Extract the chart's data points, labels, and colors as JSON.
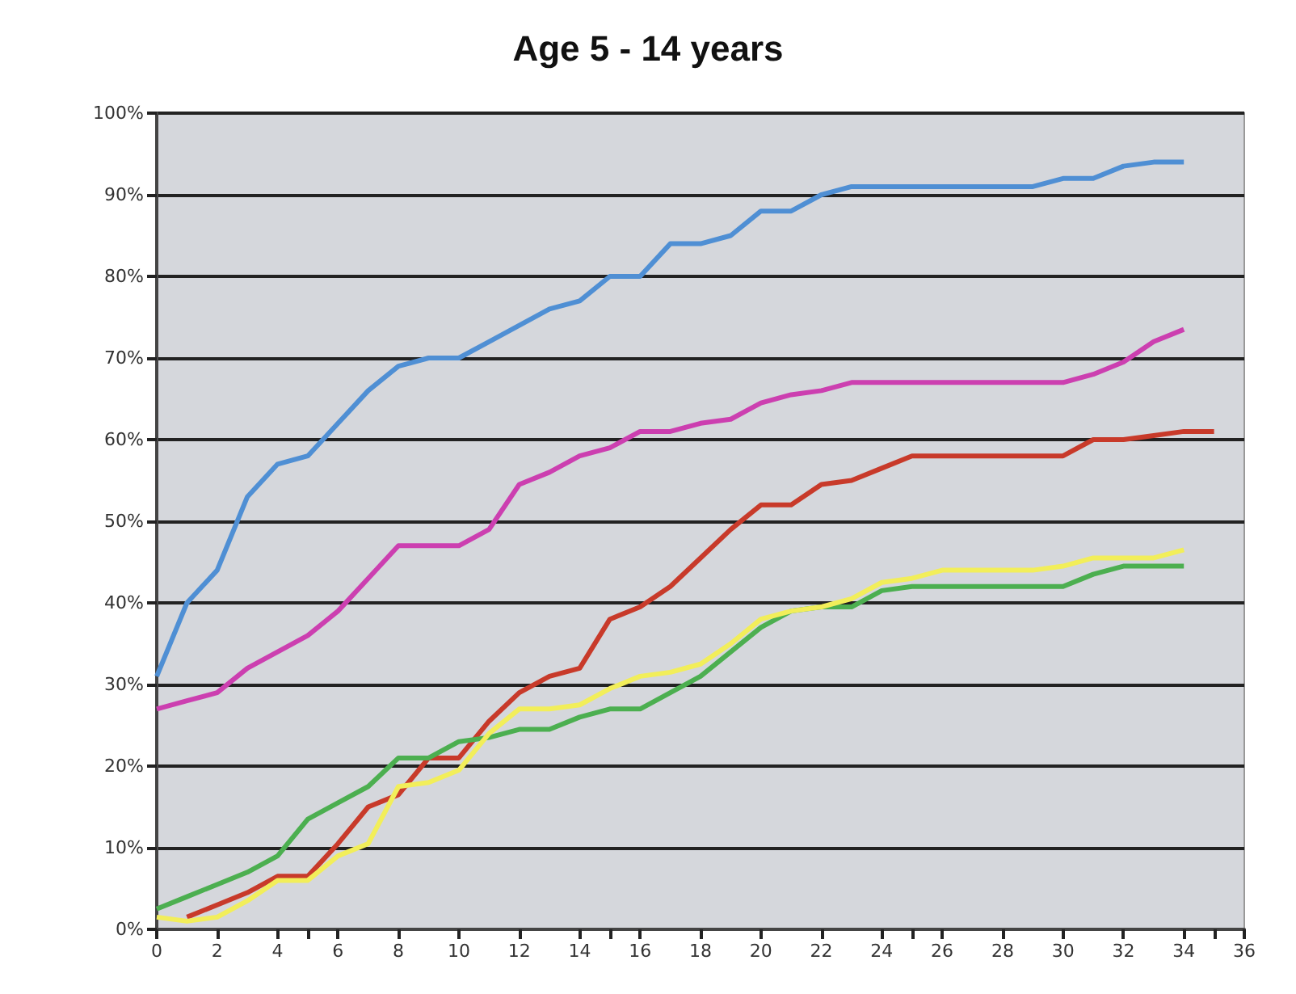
{
  "chart_data": {
    "type": "line",
    "title": "Age 5 - 14 years",
    "series": [
      {
        "color": "#4f8fd4",
        "x": [
          0,
          1,
          2,
          3,
          4,
          5,
          6,
          7,
          8,
          9,
          10,
          11,
          12,
          13,
          14,
          15,
          16,
          17,
          18,
          19,
          20,
          21,
          22,
          23,
          24,
          25,
          26,
          27,
          28,
          29,
          30,
          31,
          32,
          33,
          34
        ],
        "values": [
          31,
          40,
          44,
          53,
          57,
          58,
          62,
          66,
          69,
          70,
          70,
          72,
          74,
          76,
          77,
          80,
          80,
          84,
          84,
          85,
          88,
          88,
          90,
          91,
          91,
          91,
          91,
          91,
          91,
          91,
          92,
          92,
          93.5,
          94,
          94
        ]
      },
      {
        "color": "#cc3fb0",
        "x": [
          0,
          1,
          2,
          3,
          4,
          5,
          6,
          7,
          8,
          9,
          10,
          11,
          12,
          13,
          14,
          15,
          16,
          17,
          18,
          19,
          20,
          21,
          22,
          23,
          24,
          25,
          26,
          27,
          28,
          29,
          30,
          31,
          32,
          33,
          34
        ],
        "values": [
          27,
          28,
          29,
          32,
          34,
          36,
          39,
          43,
          47,
          47,
          47,
          49,
          54.5,
          56,
          58,
          59,
          61,
          61,
          62,
          62.5,
          64.5,
          65.5,
          66,
          67,
          67,
          67,
          67,
          67,
          67,
          67,
          67,
          68,
          69.5,
          72,
          73.5
        ]
      },
      {
        "color": "#c83a2a",
        "x": [
          1,
          2,
          3,
          4,
          5,
          6,
          7,
          8,
          9,
          10,
          11,
          12,
          13,
          14,
          15,
          16,
          17,
          18,
          19,
          20,
          21,
          22,
          23,
          24,
          25,
          26,
          27,
          28,
          29,
          30,
          31,
          32,
          33,
          34,
          35
        ],
        "values": [
          1.5,
          3,
          4.5,
          6.5,
          6.5,
          10.5,
          15,
          16.5,
          21,
          21,
          25.5,
          29,
          31,
          32,
          38,
          39.5,
          42,
          45.5,
          49,
          52,
          52,
          54.5,
          55,
          56.5,
          58,
          58,
          58,
          58,
          58,
          58,
          60,
          60,
          60.5,
          61,
          61
        ]
      },
      {
        "color": "#4caf50",
        "x": [
          0,
          1,
          2,
          3,
          4,
          5,
          6,
          7,
          8,
          9,
          10,
          11,
          12,
          13,
          14,
          15,
          16,
          17,
          18,
          19,
          20,
          21,
          22,
          23,
          24,
          25,
          26,
          27,
          28,
          29,
          30,
          31,
          32,
          33,
          34
        ],
        "values": [
          2.5,
          4,
          5.5,
          7,
          9,
          13.5,
          15.5,
          17.5,
          21,
          21,
          23,
          23.5,
          24.5,
          24.5,
          26,
          27,
          27,
          29,
          31,
          34,
          37,
          39,
          39.5,
          39.5,
          41.5,
          42,
          42,
          42,
          42,
          42,
          42,
          43.5,
          44.5,
          44.5,
          44.5
        ]
      },
      {
        "color": "#f2ee5a",
        "x": [
          0,
          1,
          2,
          3,
          4,
          5,
          6,
          7,
          8,
          9,
          10,
          11,
          12,
          13,
          14,
          15,
          16,
          17,
          18,
          19,
          20,
          21,
          22,
          23,
          24,
          25,
          26,
          27,
          28,
          29,
          30,
          31,
          32,
          33,
          34
        ],
        "values": [
          1.5,
          1,
          1.5,
          3.5,
          6,
          6,
          9,
          10.5,
          17.5,
          18,
          19.5,
          24,
          27,
          27,
          27.5,
          29.5,
          31,
          31.5,
          32.5,
          35,
          38,
          39,
          39.5,
          40.5,
          42.5,
          43,
          44,
          44,
          44,
          44,
          44.5,
          45.5,
          45.5,
          45.5,
          46.5
        ]
      }
    ],
    "xlim": [
      0,
      36
    ],
    "xticks": [
      0,
      2,
      4,
      6,
      8,
      10,
      12,
      14,
      16,
      18,
      20,
      22,
      24,
      26,
      28,
      30,
      32,
      34,
      36
    ],
    "ylim": [
      0,
      100
    ],
    "yticks": [
      {
        "value": 0,
        "label": "0%"
      },
      {
        "value": 10,
        "label": "10%"
      },
      {
        "value": 20,
        "label": "20%"
      },
      {
        "value": 30,
        "label": "30%"
      },
      {
        "value": 40,
        "label": "40%"
      },
      {
        "value": 50,
        "label": "50%"
      },
      {
        "value": 60,
        "label": "60%"
      },
      {
        "value": 70,
        "label": "70%"
      },
      {
        "value": 80,
        "label": "80%"
      },
      {
        "value": 90,
        "label": "90%"
      },
      {
        "value": 100,
        "label": "100%"
      }
    ],
    "grid": "y",
    "marker": "none",
    "line_style": "solid"
  }
}
